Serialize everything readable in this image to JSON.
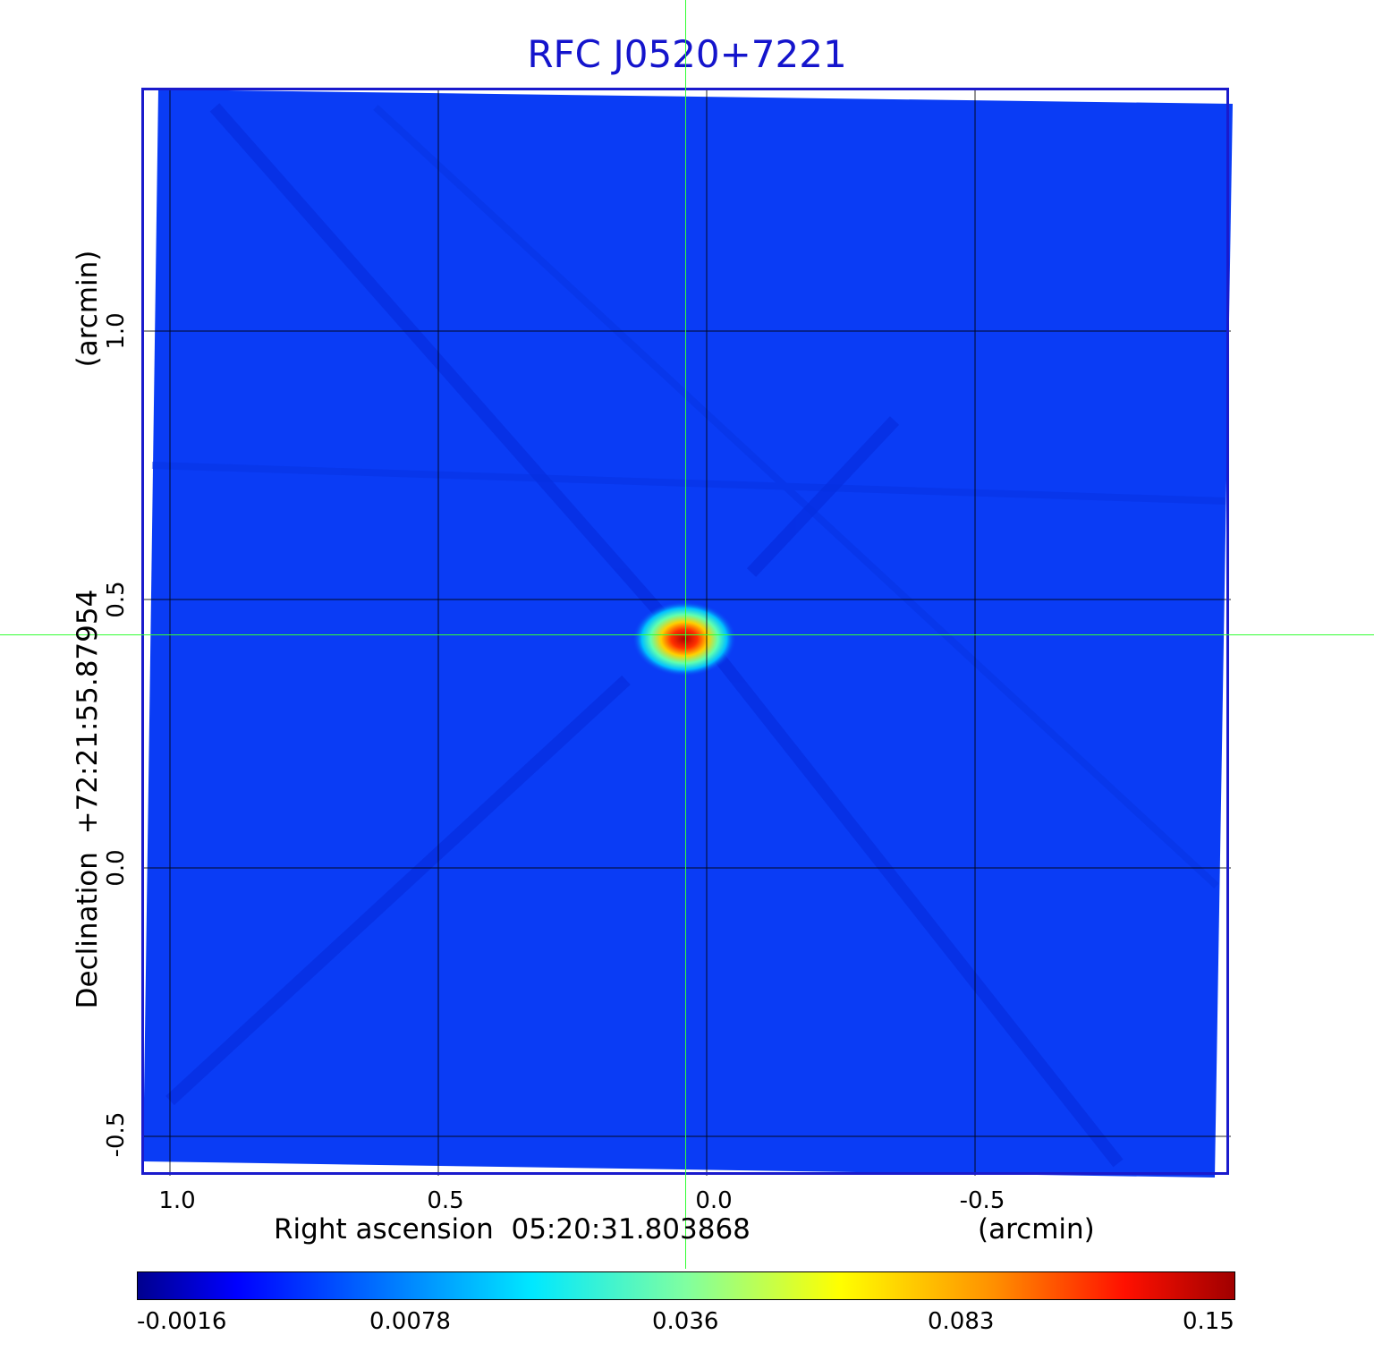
{
  "title": "RFC J0520+7221",
  "x_axis": {
    "label": "Right ascension  05:20:31.803868",
    "unit": "(arcmin)",
    "ticks": [
      "1.0",
      "0.5",
      "0.0",
      "-0.5"
    ],
    "tick_values": [
      1.0,
      0.5,
      0.0,
      -0.5
    ]
  },
  "y_axis": {
    "label": "Declination  +72:21:55.87954",
    "unit": "(arcmin)",
    "ticks": [
      "1.0",
      "0.5",
      "0.0",
      "-0.5"
    ],
    "tick_values": [
      1.0,
      0.5,
      0.0,
      -0.5
    ]
  },
  "colorbar": {
    "labels": [
      "-0.0016",
      "0.0078",
      "0.036",
      "0.083",
      "0.15"
    ]
  },
  "source": {
    "ra_offset": 0.04,
    "dec_offset": 0.43
  },
  "colors": {
    "title": "#1414cc",
    "frame": "#1a1acc",
    "crosshair": "#33ff33",
    "background_map": "#0a3cf5"
  }
}
